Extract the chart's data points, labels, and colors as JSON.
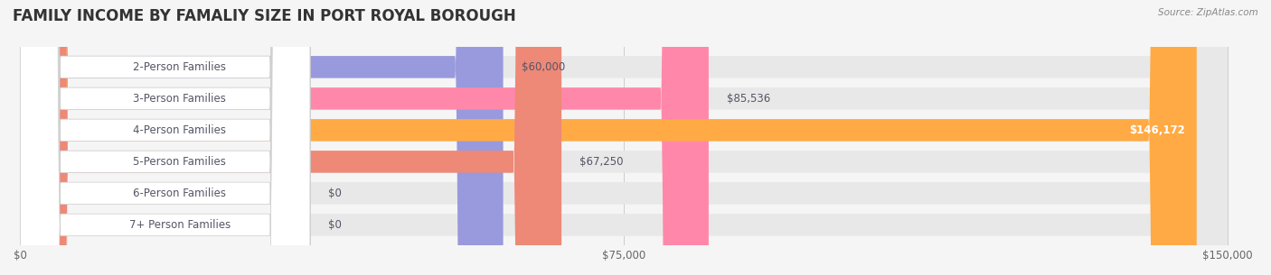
{
  "title": "FAMILY INCOME BY FAMALIY SIZE IN PORT ROYAL BOROUGH",
  "source": "Source: ZipAtlas.com",
  "categories": [
    "2-Person Families",
    "3-Person Families",
    "4-Person Families",
    "5-Person Families",
    "6-Person Families",
    "7+ Person Families"
  ],
  "values": [
    60000,
    85536,
    146172,
    67250,
    0,
    0
  ],
  "bar_colors": [
    "#9999dd",
    "#ff88aa",
    "#ffaa44",
    "#ee8877",
    "#99aadd",
    "#cc99cc"
  ],
  "label_colors": [
    "#555566",
    "#555566",
    "#ffffff",
    "#555566",
    "#555566",
    "#555566"
  ],
  "xlim": [
    0,
    150000
  ],
  "xticks": [
    0,
    75000,
    150000
  ],
  "xtick_labels": [
    "$0",
    "$75,000",
    "$150,000"
  ],
  "value_labels": [
    "$60,000",
    "$85,536",
    "$146,172",
    "$67,250",
    "$0",
    "$0"
  ],
  "background_color": "#f5f5f5",
  "bar_bg_color": "#eeeeee",
  "title_fontsize": 12,
  "label_fontsize": 8.5,
  "value_fontsize": 8.5,
  "tick_fontsize": 8.5
}
